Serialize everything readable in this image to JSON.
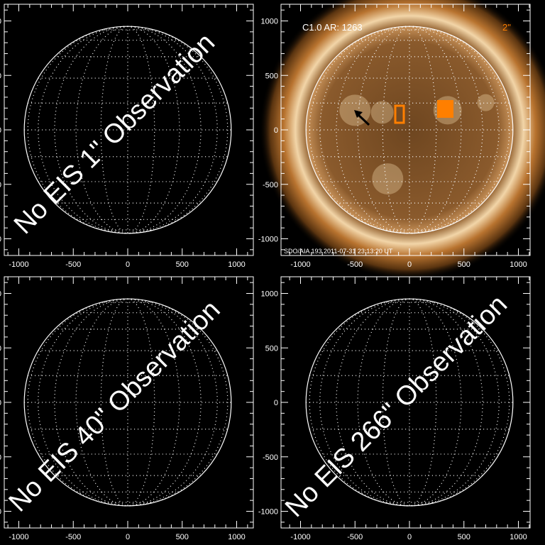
{
  "panels": [
    {
      "id": "eis-1",
      "overlay_text": "No EIS 1\" Observation",
      "has_image": false
    },
    {
      "id": "aia",
      "header_left": "C1.0 AR: 1263",
      "header_right": "2\"",
      "footer": "SDO/AIA 193   2011-07-31 23:13:20 UT",
      "has_image": true
    },
    {
      "id": "eis-40",
      "overlay_text": "No EIS 40\" Observation",
      "has_image": false
    },
    {
      "id": "eis-266",
      "overlay_text": "No EIS 266\" Observation",
      "has_image": false
    }
  ],
  "axes": {
    "x_ticks": [
      "-1000",
      "-500",
      "0",
      "500",
      "1000"
    ],
    "y_ticks": [
      "1000",
      "500",
      "0",
      "-500",
      "-1000"
    ],
    "x_tick_values": [
      -1000,
      -500,
      0,
      500,
      1000
    ],
    "y_tick_values": [
      1000,
      500,
      0,
      -500,
      -1000
    ]
  },
  "colors": {
    "axes": "#ffffff",
    "marker": "#ff7f00",
    "corona": "#b8732f"
  }
}
